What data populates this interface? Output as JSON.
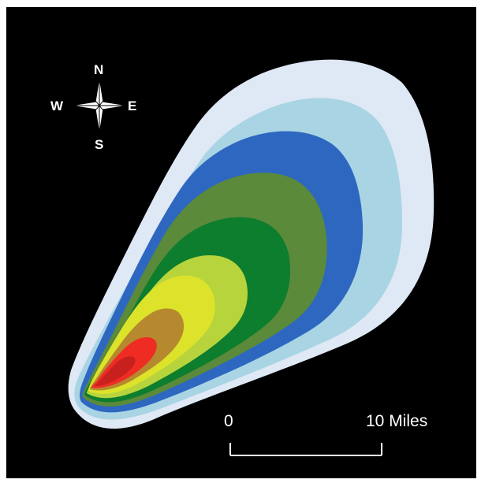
{
  "compass": {
    "north": "N",
    "south": "S",
    "east": "E",
    "west": "W"
  },
  "scale_bar": {
    "start_label": "0",
    "end_label": "10 Miles"
  },
  "colors": {
    "background": "#000000",
    "zones": [
      "#dfe8f5",
      "#a9d4e3",
      "#2e67c0",
      "#5a8a3a",
      "#0d7d2e",
      "#b7d43c",
      "#dde22a",
      "#b6892e",
      "#ee2c24",
      "#c8201d"
    ]
  }
}
